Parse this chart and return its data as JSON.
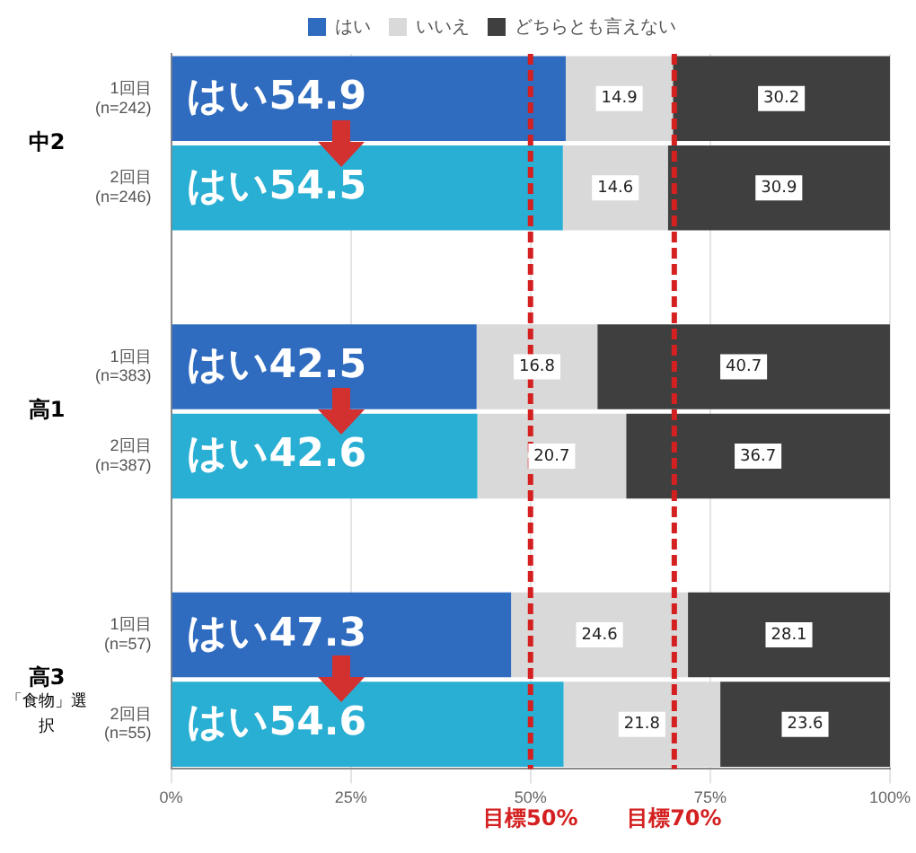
{
  "chart_data": {
    "type": "bar",
    "orientation": "horizontal",
    "stacked": true,
    "categories": [
      "1回目 (n=242)",
      "2回目 (n=246)",
      null,
      "1回目 (n=383)",
      "2回目 (n=387)",
      null,
      "1回目 (n=57)",
      "2回目 (n=55)"
    ],
    "series": [
      {
        "name": "はい",
        "colors": [
          "#2f6cc0",
          "#29afd3",
          null,
          "#2f6cc0",
          "#29afd3",
          null,
          "#2f6cc0",
          "#29afd3"
        ],
        "values": [
          54.9,
          54.5,
          null,
          42.5,
          42.6,
          null,
          47.3,
          54.6
        ],
        "value_labels": [
          "はい54.9",
          "はい54.5",
          null,
          "はい42.5",
          "はい42.6",
          null,
          "はい47.3",
          "はい54.6"
        ]
      },
      {
        "name": "いいえ",
        "color": "#d9d9d9",
        "values": [
          14.9,
          14.6,
          null,
          16.8,
          20.7,
          null,
          24.6,
          21.8
        ]
      },
      {
        "name": "どちらとも言えない",
        "color": "#3f3f3f",
        "values": [
          30.2,
          30.9,
          null,
          40.7,
          36.7,
          null,
          28.1,
          23.6
        ]
      }
    ],
    "data_labels": true,
    "xlim": [
      0,
      100
    ],
    "xticks": [
      {
        "value": 0,
        "label": "0%"
      },
      {
        "value": 25,
        "label": "25%"
      },
      {
        "value": 50,
        "label": "50%"
      },
      {
        "value": 75,
        "label": "75%"
      },
      {
        "value": 100,
        "label": "100%"
      }
    ],
    "grid": "x",
    "legend": "top",
    "ref_lines": [
      {
        "axis": "x",
        "value": 50,
        "label": "目標50%",
        "color": "#d42020",
        "line_style": "dashed"
      },
      {
        "axis": "x",
        "value": 70,
        "label": "目標70%",
        "color": "#d42020",
        "line_style": "dashed"
      }
    ],
    "annotations": [
      "中2",
      "高1",
      "高3 「食物」選択"
    ]
  }
}
